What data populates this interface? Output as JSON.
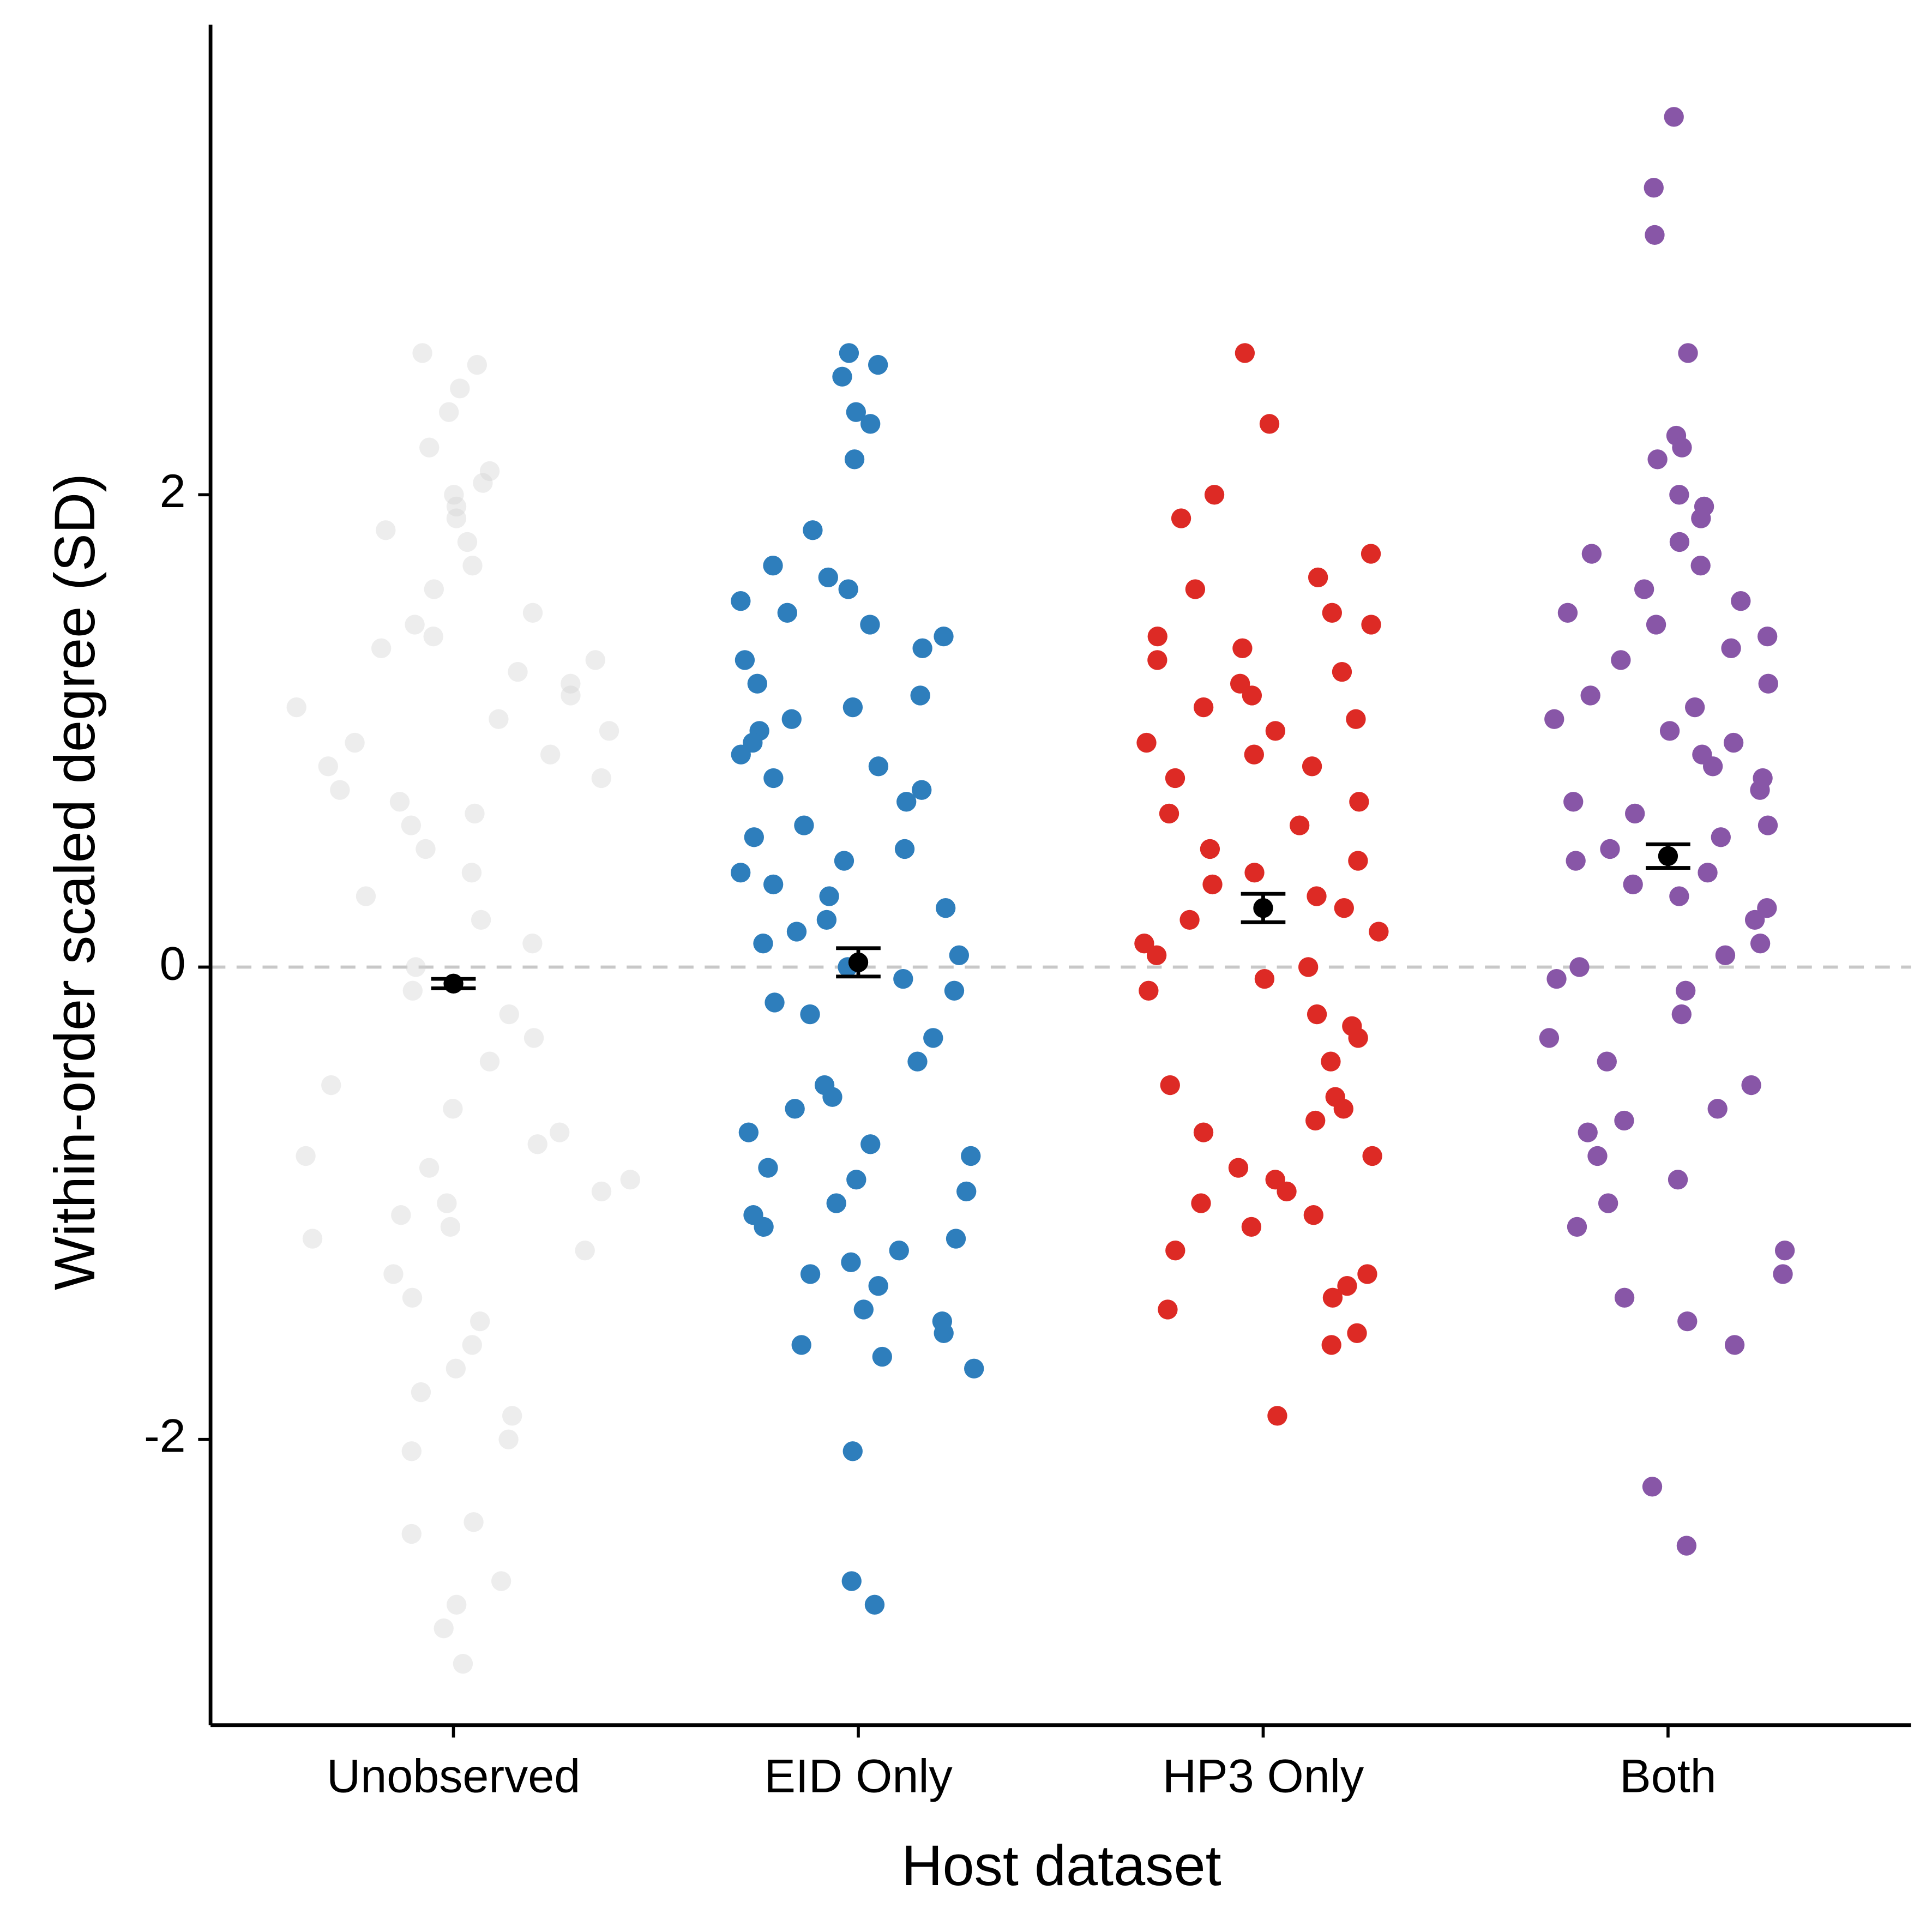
{
  "chart_data": {
    "type": "strip",
    "xlabel": "Host dataset",
    "ylabel": "Within-order scaled degree (SD)",
    "ylim": [
      -3.21,
      3.99
    ],
    "yticks": [
      -2,
      0,
      2
    ],
    "hline": 0,
    "categories": [
      "Unobserved",
      "EID Only",
      "HP3 Only",
      "Both"
    ],
    "series": [
      {
        "name": "Unobserved",
        "color": "#d3d3d3",
        "alpha": 0.4,
        "mean": -0.07,
        "se": 0.02,
        "values": [
          2.6,
          2.55,
          2.45,
          2.35,
          2.2,
          2.1,
          2.05,
          2.0,
          1.95,
          1.9,
          1.85,
          1.8,
          1.7,
          1.6,
          1.5,
          1.45,
          1.4,
          1.35,
          1.3,
          1.25,
          1.2,
          1.15,
          1.1,
          1.05,
          1.0,
          0.95,
          0.9,
          0.85,
          0.8,
          0.75,
          0.7,
          0.65,
          0.6,
          0.5,
          0.4,
          0.3,
          0.2,
          0.1,
          0.0,
          -0.1,
          -0.2,
          -0.3,
          -0.4,
          -0.5,
          -0.6,
          -0.7,
          -0.75,
          -0.8,
          -0.85,
          -0.9,
          -0.95,
          -1.0,
          -1.05,
          -1.1,
          -1.15,
          -1.2,
          -1.3,
          -1.4,
          -1.5,
          -1.6,
          -1.7,
          -1.8,
          -1.9,
          -2.0,
          -2.05,
          -2.35,
          -2.4,
          -2.6,
          -2.7,
          -2.8,
          -2.95
        ]
      },
      {
        "name": "EID Only",
        "color": "#2e7ebc",
        "alpha": 1,
        "mean": 0.02,
        "se": 0.06,
        "values": [
          2.6,
          2.55,
          2.5,
          2.35,
          2.3,
          2.15,
          1.85,
          1.7,
          1.65,
          1.6,
          1.55,
          1.5,
          1.45,
          1.4,
          1.35,
          1.3,
          1.2,
          1.15,
          1.1,
          1.05,
          1.0,
          0.95,
          0.9,
          0.85,
          0.8,
          0.75,
          0.7,
          0.6,
          0.55,
          0.5,
          0.45,
          0.4,
          0.35,
          0.3,
          0.25,
          0.2,
          0.15,
          0.1,
          0.05,
          0.0,
          -0.05,
          -0.1,
          -0.15,
          -0.2,
          -0.3,
          -0.4,
          -0.5,
          -0.55,
          -0.6,
          -0.7,
          -0.75,
          -0.8,
          -0.85,
          -0.9,
          -0.95,
          -1.0,
          -1.05,
          -1.1,
          -1.15,
          -1.2,
          -1.25,
          -1.3,
          -1.35,
          -1.45,
          -1.5,
          -1.55,
          -1.6,
          -1.65,
          -1.7,
          -2.05,
          -2.6,
          -2.7
        ]
      },
      {
        "name": "HP3 Only",
        "color": "#dd2a25",
        "alpha": 1,
        "mean": 0.25,
        "se": 0.06,
        "values": [
          2.6,
          2.3,
          2.0,
          1.9,
          1.75,
          1.65,
          1.6,
          1.5,
          1.45,
          1.4,
          1.35,
          1.3,
          1.25,
          1.2,
          1.15,
          1.1,
          1.05,
          1.0,
          0.95,
          0.9,
          0.85,
          0.8,
          0.7,
          0.65,
          0.6,
          0.5,
          0.45,
          0.4,
          0.35,
          0.3,
          0.25,
          0.2,
          0.15,
          0.1,
          0.05,
          0.0,
          -0.05,
          -0.1,
          -0.2,
          -0.25,
          -0.3,
          -0.4,
          -0.5,
          -0.55,
          -0.6,
          -0.65,
          -0.7,
          -0.8,
          -0.85,
          -0.9,
          -0.95,
          -1.0,
          -1.05,
          -1.1,
          -1.2,
          -1.3,
          -1.35,
          -1.4,
          -1.45,
          -1.55,
          -1.6,
          -1.9
        ]
      },
      {
        "name": "Both",
        "color": "#8856a7",
        "alpha": 1,
        "mean": 0.47,
        "se": 0.05,
        "values": [
          3.6,
          3.3,
          3.1,
          2.6,
          2.25,
          2.2,
          2.15,
          2.0,
          1.95,
          1.9,
          1.8,
          1.75,
          1.7,
          1.6,
          1.55,
          1.5,
          1.45,
          1.4,
          1.35,
          1.3,
          1.2,
          1.15,
          1.1,
          1.05,
          1.0,
          0.95,
          0.9,
          0.85,
          0.8,
          0.75,
          0.7,
          0.65,
          0.6,
          0.55,
          0.5,
          0.45,
          0.4,
          0.35,
          0.3,
          0.25,
          0.2,
          0.1,
          0.05,
          0.0,
          -0.05,
          -0.1,
          -0.2,
          -0.3,
          -0.4,
          -0.5,
          -0.6,
          -0.65,
          -0.7,
          -0.8,
          -0.9,
          -1.0,
          -1.1,
          -1.2,
          -1.3,
          -1.4,
          -1.5,
          -1.6,
          -2.2,
          -2.45
        ]
      }
    ]
  }
}
